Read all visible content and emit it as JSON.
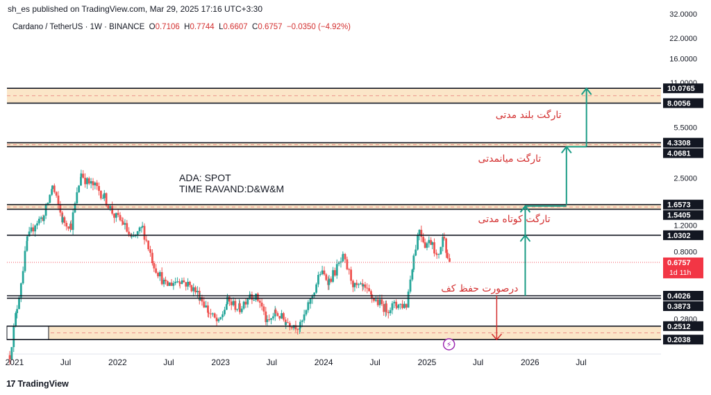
{
  "header": {
    "published": "sh_es published on TradingView.com, Mar 29, 2025 17:16 UTC+3:30",
    "symbol": "Cardano / TetherUS · 1W · BINANCE",
    "o_label": "O",
    "o": "0.7106",
    "h_label": "H",
    "h": "0.7744",
    "l_label": "L",
    "l": "0.6607",
    "c_label": "C",
    "c": "0.6757",
    "change": "−0.0350 (−4.92%)"
  },
  "annotation": {
    "line1": "ADA: SPOT",
    "line2": "TIME RAVAND:D&W&M"
  },
  "footer": {
    "brand": "TradingView",
    "logo": "17"
  },
  "colors": {
    "up": "#26a69a",
    "down": "#ef5350",
    "zone": "#fbe6c8",
    "target": "#1a9b85",
    "stop": "#d32f2f",
    "price_tag": "#f23645"
  },
  "chart_data": {
    "type": "candlestick",
    "scale": "log",
    "ylim": [
      0.17,
      32.0
    ],
    "xlim": [
      "2020-12-05",
      "2027-04-10"
    ],
    "y_ticks": [
      "32.0000",
      "22.0000",
      "16.0000",
      "11.0000",
      "5.5000",
      "2.5000",
      "1.2000",
      "0.8000",
      "0.2800"
    ],
    "x_ticks": [
      "2021",
      "Jul",
      "2022",
      "Jul",
      "2023",
      "Jul",
      "2024",
      "Jul",
      "2025",
      "Jul",
      "2026",
      "Jul"
    ],
    "x_tick_dates": [
      "2021-01-01",
      "2021-07-01",
      "2022-01-01",
      "2022-07-01",
      "2023-01-01",
      "2023-07-01",
      "2024-01-01",
      "2024-07-01",
      "2025-01-01",
      "2025-07-01",
      "2026-01-01",
      "2026-07-01"
    ],
    "levels": [
      "10.0765",
      "8.0056",
      "4.3308",
      "4.0681",
      "1.6573",
      "1.5405",
      "1.0302",
      "0.4026",
      "0.3873",
      "0.2512",
      "0.2038"
    ],
    "zones": [
      {
        "top": 10.0765,
        "bottom": 8.0056
      },
      {
        "top": 4.3308,
        "bottom": 4.0681
      },
      {
        "top": 1.6573,
        "bottom": 1.5405
      },
      {
        "top": 0.2512,
        "bottom": 0.2038
      }
    ],
    "current_price": {
      "value": "0.6757",
      "countdown": "1d 11h"
    },
    "targets": [
      {
        "label": "تارگت بلند مدتی",
        "value": 10.0765
      },
      {
        "label": "تارگت میانمدتی",
        "value": 4.0681
      },
      {
        "label": "تارگت کوتاه مدتی",
        "value": 1.0302
      }
    ],
    "stop_loss": {
      "label": "درصورت حفظ کف",
      "from": 0.4026,
      "to": 0.2038
    },
    "price_path": [
      [
        "2020-12-15",
        0.16
      ],
      [
        "2021-01-10",
        0.34
      ],
      [
        "2021-02-15",
        0.95
      ],
      [
        "2021-03-15",
        1.25
      ],
      [
        "2021-04-15",
        1.38
      ],
      [
        "2021-05-15",
        2.2
      ],
      [
        "2021-06-20",
        1.3
      ],
      [
        "2021-07-20",
        1.2
      ],
      [
        "2021-08-25",
        2.7
      ],
      [
        "2021-09-15",
        2.35
      ],
      [
        "2021-10-20",
        2.15
      ],
      [
        "2021-11-15",
        1.85
      ],
      [
        "2021-12-20",
        1.4
      ],
      [
        "2022-01-20",
        1.25
      ],
      [
        "2022-02-20",
        0.95
      ],
      [
        "2022-03-30",
        1.15
      ],
      [
        "2022-05-10",
        0.65
      ],
      [
        "2022-06-20",
        0.47
      ],
      [
        "2022-08-10",
        0.52
      ],
      [
        "2022-09-20",
        0.46
      ],
      [
        "2022-10-20",
        0.4
      ],
      [
        "2022-11-20",
        0.31
      ],
      [
        "2022-12-25",
        0.26
      ],
      [
        "2023-01-25",
        0.37
      ],
      [
        "2023-03-10",
        0.33
      ],
      [
        "2023-04-15",
        0.42
      ],
      [
        "2023-05-20",
        0.37
      ],
      [
        "2023-06-15",
        0.26
      ],
      [
        "2023-07-15",
        0.31
      ],
      [
        "2023-08-20",
        0.27
      ],
      [
        "2023-10-10",
        0.25
      ],
      [
        "2023-11-15",
        0.37
      ],
      [
        "2023-12-20",
        0.58
      ],
      [
        "2024-01-20",
        0.51
      ],
      [
        "2024-03-10",
        0.72
      ],
      [
        "2024-04-20",
        0.46
      ],
      [
        "2024-05-20",
        0.45
      ],
      [
        "2024-06-20",
        0.39
      ],
      [
        "2024-08-10",
        0.33
      ],
      [
        "2024-09-15",
        0.35
      ],
      [
        "2024-10-20",
        0.35
      ],
      [
        "2024-11-15",
        0.75
      ],
      [
        "2024-12-05",
        1.15
      ],
      [
        "2024-12-25",
        0.9
      ],
      [
        "2025-01-20",
        0.95
      ],
      [
        "2025-02-05",
        0.72
      ],
      [
        "2025-03-03",
        1.05
      ],
      [
        "2025-03-15",
        0.72
      ],
      [
        "2025-03-29",
        0.6757
      ]
    ]
  }
}
